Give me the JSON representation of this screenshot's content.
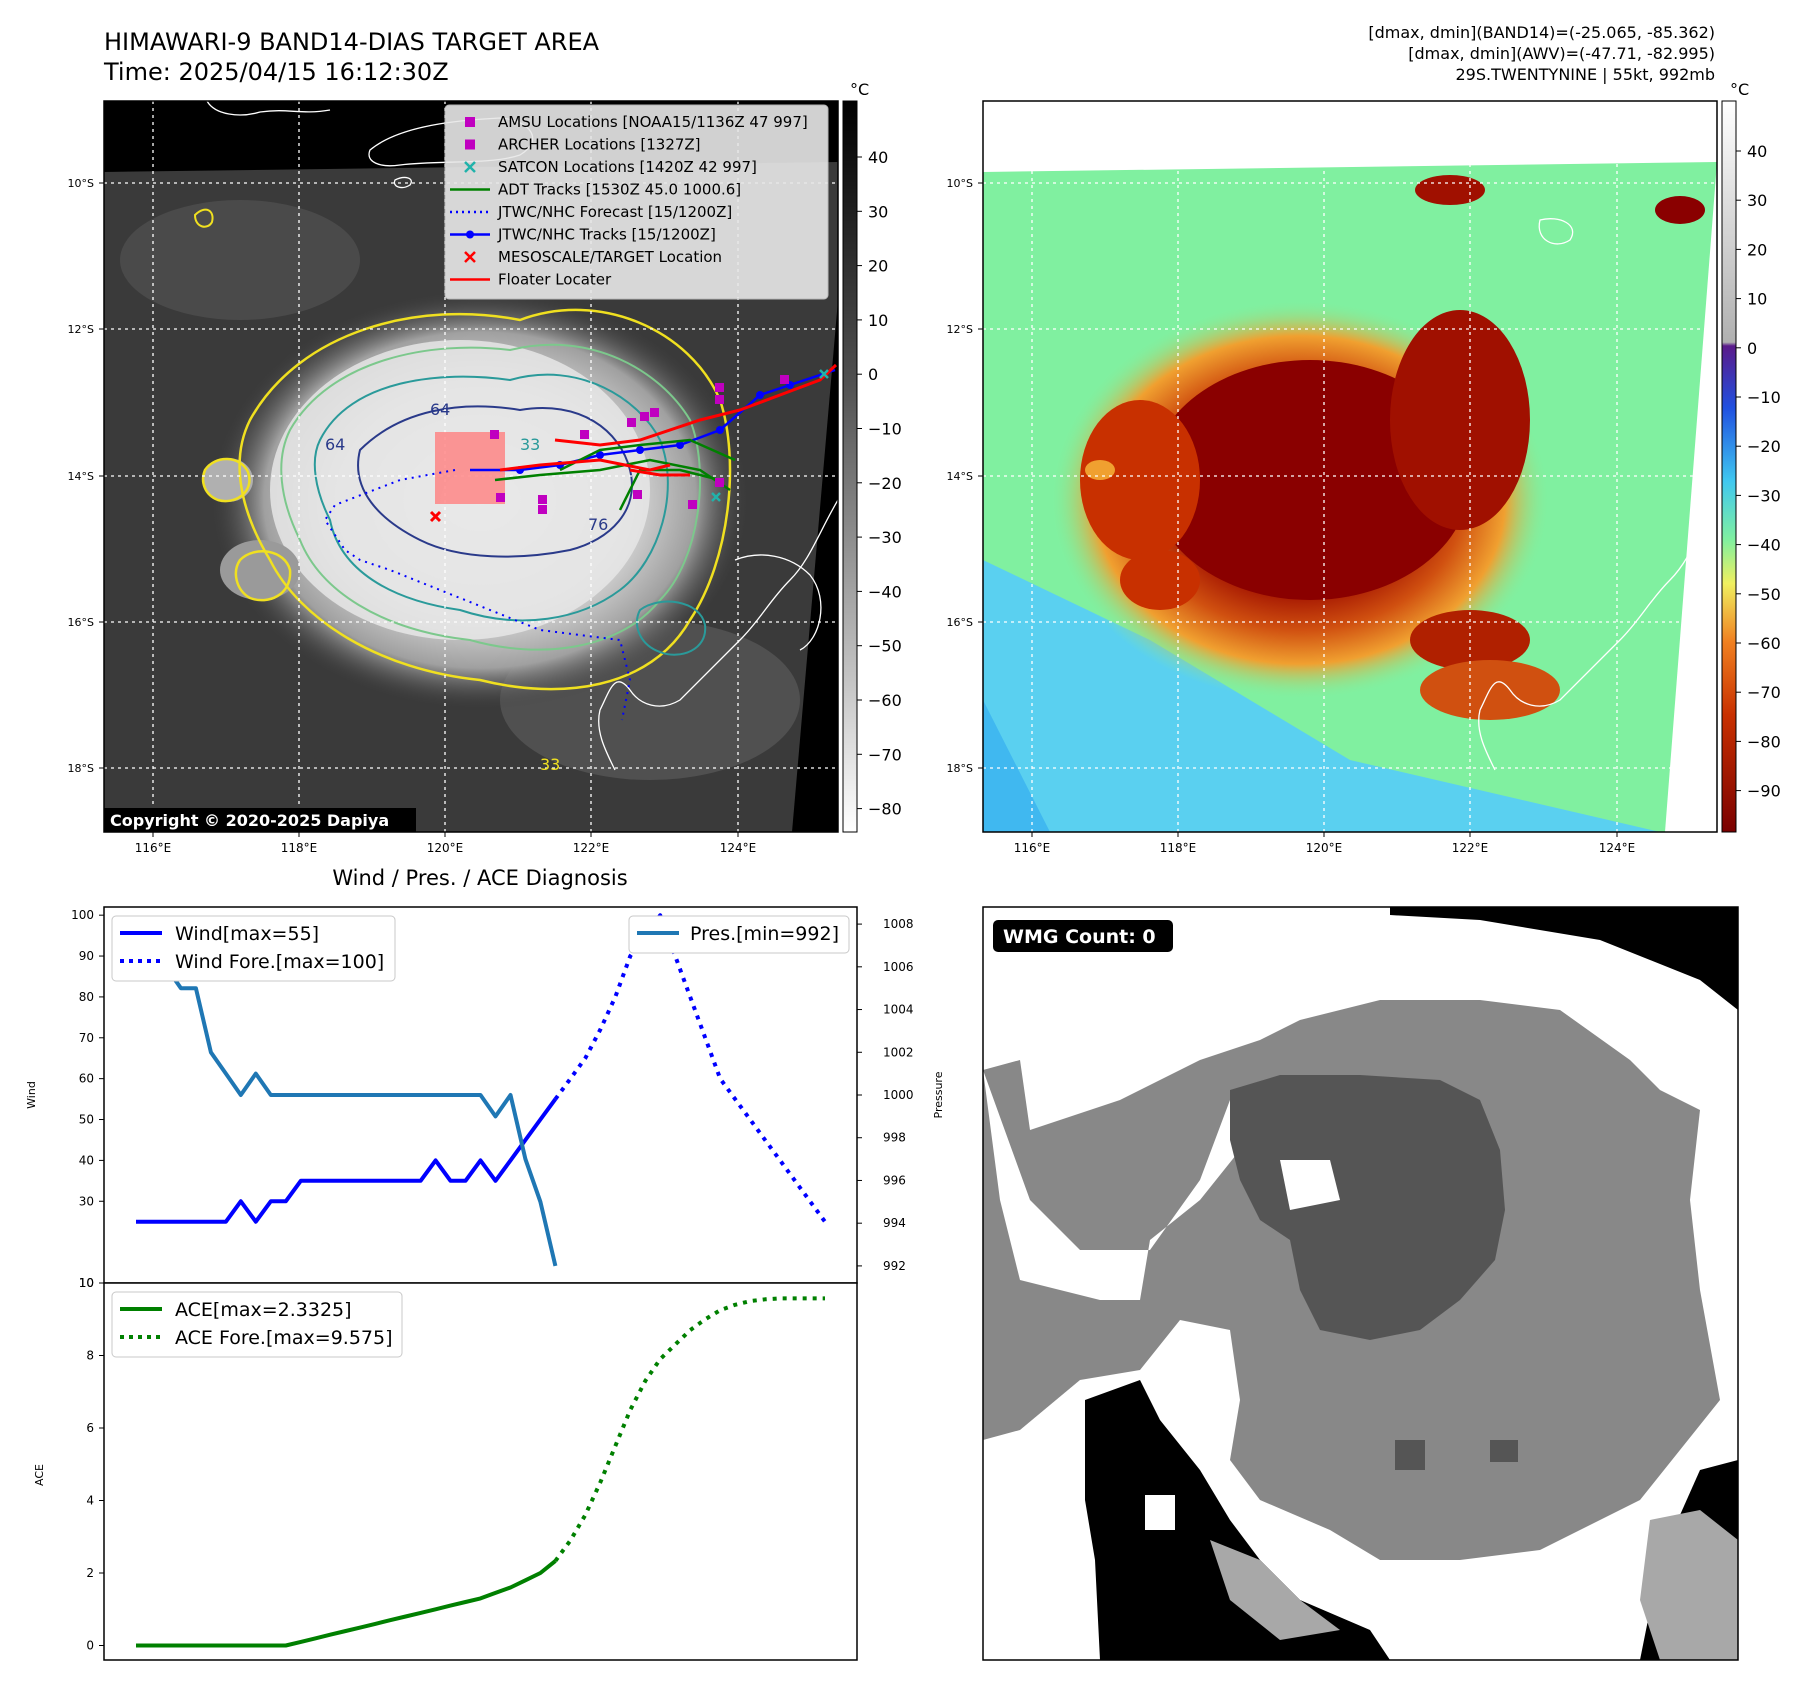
{
  "header": {
    "title_line1": "HIMAWARI-9 BAND14-DIAS TARGET AREA",
    "title_line2": "Time: 2025/04/15 16:12:30Z",
    "info_line1": "[dmax, dmin](BAND14)=(-25.065, -85.362)",
    "info_line2": "[dmax, dmin](AWV)=(-47.71, -82.995)",
    "info_line3": "29S.TWENTYNINE | 55kt, 992mb"
  },
  "map": {
    "lat_labels": [
      "10°S",
      "12°S",
      "14°S",
      "16°S",
      "18°S"
    ],
    "lon_labels": [
      "116°E",
      "118°E",
      "120°E",
      "122°E",
      "124°E"
    ],
    "copyright": "Copyright © 2020-2025 Dapiya",
    "contour_labels": [
      "64",
      "64",
      "76",
      "33",
      "33"
    ],
    "legend": [
      {
        "label": "AMSU Locations [NOAA15/1136Z 47 997]",
        "color": "#c000c0",
        "marker": "square"
      },
      {
        "label": "ARCHER Locations [1327Z]",
        "color": "#c000c0",
        "marker": "square"
      },
      {
        "label": "SATCON Locations [1420Z 42 997]",
        "color": "#20b2aa",
        "marker": "x"
      },
      {
        "label": "ADT Tracks [1530Z 45.0 1000.6]",
        "color": "#008000",
        "marker": "line"
      },
      {
        "label": "JTWC/NHC Forecast [15/1200Z]",
        "color": "#0000ff",
        "marker": "dotted"
      },
      {
        "label": "JTWC/NHC Tracks [15/1200Z]",
        "color": "#0000ff",
        "marker": "line-dot"
      },
      {
        "label": "MESOSCALE/TARGET Location",
        "color": "#ff0000",
        "marker": "x"
      },
      {
        "label": "Floater Locater",
        "color": "#ff0000",
        "marker": "line"
      }
    ]
  },
  "colorbar_gray": {
    "unit": "°C",
    "ticks": [
      "40",
      "30",
      "20",
      "10",
      "0",
      "−10",
      "−20",
      "−30",
      "−40",
      "−50",
      "−60",
      "−70",
      "−80"
    ]
  },
  "colorbar_color": {
    "unit": "°C",
    "ticks": [
      "40",
      "30",
      "20",
      "10",
      "0",
      "−10",
      "−20",
      "−30",
      "−40",
      "−50",
      "−60",
      "−70",
      "−80",
      "−90"
    ]
  },
  "wmg": {
    "label": "WMG Count: 0"
  },
  "chart_data": [
    {
      "type": "line",
      "title": "Wind / Pres. / ACE Diagnosis",
      "ylabel": "Wind",
      "ylabel_right": "Pressure",
      "ylim": [
        10,
        102
      ],
      "ylim_right": [
        991.2,
        1008.8
      ],
      "yticks": [
        10,
        30,
        40,
        50,
        60,
        70,
        80,
        90,
        100
      ],
      "yticks_right": [
        992,
        994,
        996,
        998,
        1000,
        1002,
        1004,
        1006,
        1008
      ],
      "x_count": 47,
      "series": [
        {
          "name": "Wind[max=55]",
          "axis": "left",
          "color": "#0000ff",
          "style": "solid",
          "x": [
            0,
            1,
            2,
            3,
            4,
            5,
            6,
            7,
            8,
            9,
            10,
            11,
            12,
            13,
            14,
            15,
            16,
            17,
            18,
            19,
            20,
            21,
            22,
            23,
            24,
            25,
            26,
            27,
            28
          ],
          "values": [
            25,
            25,
            25,
            25,
            25,
            25,
            25,
            30,
            25,
            30,
            30,
            35,
            35,
            35,
            35,
            35,
            35,
            35,
            35,
            35,
            40,
            35,
            35,
            40,
            35,
            40,
            45,
            50,
            55
          ]
        },
        {
          "name": "Wind Fore.[max=100]",
          "axis": "left",
          "color": "#0000ff",
          "style": "dotted",
          "x": [
            28,
            29,
            30,
            31,
            32,
            33,
            34,
            35,
            36,
            37,
            38,
            39,
            40,
            41,
            42,
            43,
            44,
            45,
            46
          ],
          "values": [
            55,
            60,
            65,
            72,
            80,
            90,
            95,
            100,
            90,
            80,
            70,
            60,
            55,
            50,
            45,
            40,
            35,
            30,
            25
          ]
        },
        {
          "name": "Pres.[min=992]",
          "axis": "right",
          "color": "#1f77b4",
          "style": "solid",
          "x": [
            0,
            1,
            2,
            3,
            4,
            5,
            6,
            7,
            8,
            9,
            10,
            11,
            12,
            13,
            14,
            15,
            16,
            17,
            18,
            19,
            20,
            21,
            22,
            23,
            24,
            25,
            26,
            27,
            28
          ],
          "values": [
            1008,
            1006,
            1006,
            1005,
            1005,
            1002,
            1001,
            1000,
            1001,
            1000,
            1000,
            1000,
            1000,
            1000,
            1000,
            1000,
            1000,
            1000,
            1000,
            1000,
            1000,
            1000,
            1000,
            1000,
            999,
            1000,
            997,
            995,
            992
          ]
        }
      ]
    },
    {
      "type": "line",
      "ylabel": "ACE",
      "ylim": [
        -0.4,
        10
      ],
      "yticks": [
        0,
        2,
        4,
        6,
        8,
        10
      ],
      "x_count": 47,
      "series": [
        {
          "name": "ACE[max=2.3325]",
          "color": "#008000",
          "style": "solid",
          "x": [
            0,
            1,
            2,
            3,
            4,
            5,
            6,
            7,
            8,
            9,
            10,
            11,
            12,
            13,
            14,
            15,
            16,
            17,
            18,
            19,
            20,
            21,
            22,
            23,
            24,
            25,
            26,
            27,
            28
          ],
          "values": [
            0,
            0,
            0,
            0,
            0,
            0,
            0,
            0,
            0,
            0,
            0,
            0.1,
            0.2,
            0.3,
            0.4,
            0.5,
            0.6,
            0.7,
            0.8,
            0.9,
            1.0,
            1.1,
            1.2,
            1.3,
            1.45,
            1.6,
            1.8,
            2.0,
            2.3325
          ]
        },
        {
          "name": "ACE Fore.[max=9.575]",
          "color": "#008000",
          "style": "dotted",
          "x": [
            28,
            29,
            30,
            31,
            32,
            33,
            34,
            35,
            36,
            37,
            38,
            39,
            40,
            41,
            42,
            43,
            44,
            45,
            46
          ],
          "values": [
            2.3325,
            2.9,
            3.6,
            4.5,
            5.5,
            6.5,
            7.3,
            7.9,
            8.3,
            8.7,
            9.0,
            9.25,
            9.4,
            9.5,
            9.55,
            9.575,
            9.575,
            9.575,
            9.575
          ]
        }
      ]
    }
  ]
}
